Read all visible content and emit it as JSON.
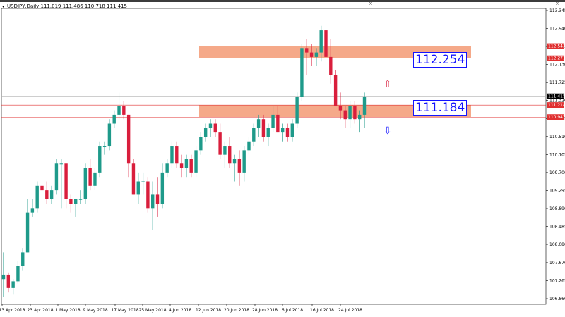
{
  "window": {
    "title": "USDJPY,Daily  111.019 111.486 110.718 111.415",
    "close_glyph": "×",
    "menu_glyph": "▾"
  },
  "colors": {
    "bull": "#1e9a8a",
    "bear": "#d91e3c",
    "zone_fill": "#f4a07c",
    "zone_line": "#e03030",
    "bid_box": "#000000",
    "label_text": "#1414ff"
  },
  "annotations": {
    "upper_level_label": "112.254",
    "lower_level_label": "111.184",
    "up_arrow_icon": "⇧",
    "down_arrow_icon": "⇩"
  },
  "chart_data": {
    "type": "candlestick",
    "symbol": "USDJPY",
    "timeframe": "Daily",
    "ylim": [
      106.7,
      113.6
    ],
    "y_ticks": [
      "113.345",
      "112.940",
      "112.535",
      "112.130",
      "111.725",
      "111.320",
      "110.915",
      "110.510",
      "110.105",
      "109.700",
      "109.295",
      "108.890",
      "108.485",
      "108.080",
      "107.670",
      "107.265",
      "106.860"
    ],
    "x_ticks": [
      "13 Apr 2018",
      "23 Apr 2018",
      "1 May 2018",
      "9 May 2018",
      "17 May 2018",
      "25 May 2018",
      "4 Jun 2018",
      "12 Jun 2018",
      "20 Jun 2018",
      "28 Jun 2018",
      "6 Jul 2018",
      "16 Jul 2018",
      "24 Jul 2018"
    ],
    "price_tags": {
      "zone_upper_top": "112.543",
      "zone_upper_bottom": "112.271",
      "current": "111.415",
      "zone_lower_top": "111.218",
      "zone_lower_bottom": "110.947"
    },
    "zones": [
      {
        "top": 112.543,
        "bottom": 112.271
      },
      {
        "top": 111.218,
        "bottom": 110.947
      }
    ],
    "candles": [
      {
        "o": 107.3,
        "h": 107.9,
        "l": 106.9,
        "c": 107.4
      },
      {
        "o": 107.4,
        "h": 107.45,
        "l": 107.0,
        "c": 107.1
      },
      {
        "o": 107.1,
        "h": 107.3,
        "l": 106.95,
        "c": 107.25
      },
      {
        "o": 107.25,
        "h": 107.7,
        "l": 107.2,
        "c": 107.6
      },
      {
        "o": 107.6,
        "h": 108.0,
        "l": 107.5,
        "c": 107.9
      },
      {
        "o": 107.9,
        "h": 109.1,
        "l": 107.9,
        "c": 108.8
      },
      {
        "o": 108.8,
        "h": 109.1,
        "l": 108.7,
        "c": 108.9
      },
      {
        "o": 108.9,
        "h": 109.5,
        "l": 108.8,
        "c": 109.4
      },
      {
        "o": 109.4,
        "h": 109.7,
        "l": 109.0,
        "c": 109.3
      },
      {
        "o": 109.3,
        "h": 109.5,
        "l": 109.0,
        "c": 109.1
      },
      {
        "o": 109.1,
        "h": 109.4,
        "l": 109.0,
        "c": 109.3
      },
      {
        "o": 109.3,
        "h": 110.0,
        "l": 109.2,
        "c": 109.9
      },
      {
        "o": 109.9,
        "h": 110.0,
        "l": 108.9,
        "c": 109.9
      },
      {
        "o": 109.9,
        "h": 109.9,
        "l": 108.9,
        "c": 109.1
      },
      {
        "o": 109.1,
        "h": 109.2,
        "l": 108.8,
        "c": 109.0
      },
      {
        "o": 109.0,
        "h": 109.1,
        "l": 108.7,
        "c": 109.1
      },
      {
        "o": 109.1,
        "h": 109.3,
        "l": 109.0,
        "c": 109.1
      },
      {
        "o": 109.1,
        "h": 109.9,
        "l": 109.0,
        "c": 109.8
      },
      {
        "o": 109.8,
        "h": 110.0,
        "l": 109.3,
        "c": 109.4
      },
      {
        "o": 109.4,
        "h": 109.8,
        "l": 109.3,
        "c": 109.7
      },
      {
        "o": 109.7,
        "h": 110.4,
        "l": 109.6,
        "c": 110.3
      },
      {
        "o": 110.3,
        "h": 110.4,
        "l": 110.1,
        "c": 110.3
      },
      {
        "o": 110.3,
        "h": 110.9,
        "l": 110.2,
        "c": 110.8
      },
      {
        "o": 110.8,
        "h": 111.1,
        "l": 110.7,
        "c": 111.0
      },
      {
        "o": 111.0,
        "h": 111.5,
        "l": 110.9,
        "c": 111.2
      },
      {
        "o": 111.2,
        "h": 111.3,
        "l": 110.9,
        "c": 111.0
      },
      {
        "o": 111.0,
        "h": 111.0,
        "l": 109.6,
        "c": 109.9
      },
      {
        "o": 109.9,
        "h": 110.0,
        "l": 109.2,
        "c": 109.2
      },
      {
        "o": 109.2,
        "h": 109.7,
        "l": 109.0,
        "c": 109.5
      },
      {
        "o": 109.5,
        "h": 109.7,
        "l": 109.2,
        "c": 109.5
      },
      {
        "o": 109.5,
        "h": 109.6,
        "l": 108.8,
        "c": 108.9
      },
      {
        "o": 108.9,
        "h": 109.5,
        "l": 108.4,
        "c": 109.2
      },
      {
        "o": 109.2,
        "h": 109.6,
        "l": 108.7,
        "c": 109.0
      },
      {
        "o": 109.0,
        "h": 109.9,
        "l": 108.9,
        "c": 109.7
      },
      {
        "o": 109.7,
        "h": 110.0,
        "l": 109.6,
        "c": 109.9
      },
      {
        "o": 109.9,
        "h": 110.4,
        "l": 109.8,
        "c": 110.3
      },
      {
        "o": 110.3,
        "h": 110.4,
        "l": 109.8,
        "c": 109.9
      },
      {
        "o": 109.9,
        "h": 110.1,
        "l": 109.6,
        "c": 109.8
      },
      {
        "o": 109.8,
        "h": 110.1,
        "l": 109.6,
        "c": 110.0
      },
      {
        "o": 110.0,
        "h": 110.1,
        "l": 109.6,
        "c": 109.7
      },
      {
        "o": 109.7,
        "h": 110.3,
        "l": 109.6,
        "c": 110.2
      },
      {
        "o": 110.2,
        "h": 110.6,
        "l": 110.1,
        "c": 110.5
      },
      {
        "o": 110.5,
        "h": 110.8,
        "l": 110.4,
        "c": 110.7
      },
      {
        "o": 110.7,
        "h": 110.9,
        "l": 110.5,
        "c": 110.8
      },
      {
        "o": 110.8,
        "h": 110.9,
        "l": 110.5,
        "c": 110.6
      },
      {
        "o": 110.6,
        "h": 110.8,
        "l": 110.0,
        "c": 110.1
      },
      {
        "o": 110.1,
        "h": 110.4,
        "l": 109.8,
        "c": 110.3
      },
      {
        "o": 110.3,
        "h": 110.5,
        "l": 109.8,
        "c": 109.9
      },
      {
        "o": 109.9,
        "h": 110.1,
        "l": 109.5,
        "c": 110.0
      },
      {
        "o": 110.0,
        "h": 110.2,
        "l": 109.4,
        "c": 109.7
      },
      {
        "o": 109.7,
        "h": 110.3,
        "l": 109.5,
        "c": 110.2
      },
      {
        "o": 110.2,
        "h": 110.5,
        "l": 110.1,
        "c": 110.4
      },
      {
        "o": 110.4,
        "h": 110.8,
        "l": 110.3,
        "c": 110.7
      },
      {
        "o": 110.7,
        "h": 111.0,
        "l": 110.5,
        "c": 110.9
      },
      {
        "o": 110.9,
        "h": 111.0,
        "l": 110.4,
        "c": 110.5
      },
      {
        "o": 110.5,
        "h": 110.8,
        "l": 110.3,
        "c": 110.7
      },
      {
        "o": 110.7,
        "h": 111.2,
        "l": 110.6,
        "c": 111.0
      },
      {
        "o": 111.0,
        "h": 111.2,
        "l": 110.6,
        "c": 110.6
      },
      {
        "o": 110.6,
        "h": 110.8,
        "l": 110.4,
        "c": 110.7
      },
      {
        "o": 110.7,
        "h": 110.8,
        "l": 110.4,
        "c": 110.5
      },
      {
        "o": 110.5,
        "h": 110.9,
        "l": 110.4,
        "c": 110.8
      },
      {
        "o": 110.8,
        "h": 111.5,
        "l": 110.7,
        "c": 111.4
      },
      {
        "o": 111.4,
        "h": 112.6,
        "l": 111.3,
        "c": 112.5
      },
      {
        "o": 112.5,
        "h": 112.7,
        "l": 111.9,
        "c": 112.4
      },
      {
        "o": 112.4,
        "h": 112.6,
        "l": 112.1,
        "c": 112.3
      },
      {
        "o": 112.3,
        "h": 112.5,
        "l": 112.1,
        "c": 112.4
      },
      {
        "o": 112.4,
        "h": 113.0,
        "l": 112.2,
        "c": 112.9
      },
      {
        "o": 112.9,
        "h": 113.2,
        "l": 112.1,
        "c": 112.3
      },
      {
        "o": 112.3,
        "h": 112.7,
        "l": 111.7,
        "c": 111.9
      },
      {
        "o": 111.9,
        "h": 112.0,
        "l": 111.2,
        "c": 111.2
      },
      {
        "o": 111.2,
        "h": 111.5,
        "l": 110.9,
        "c": 111.1
      },
      {
        "o": 111.1,
        "h": 111.2,
        "l": 110.7,
        "c": 110.9
      },
      {
        "o": 110.9,
        "h": 111.3,
        "l": 110.7,
        "c": 111.2
      },
      {
        "o": 111.2,
        "h": 111.3,
        "l": 110.8,
        "c": 110.9
      },
      {
        "o": 110.9,
        "h": 111.1,
        "l": 110.6,
        "c": 111.0
      },
      {
        "o": 111.0,
        "h": 111.5,
        "l": 110.7,
        "c": 111.41
      }
    ]
  }
}
